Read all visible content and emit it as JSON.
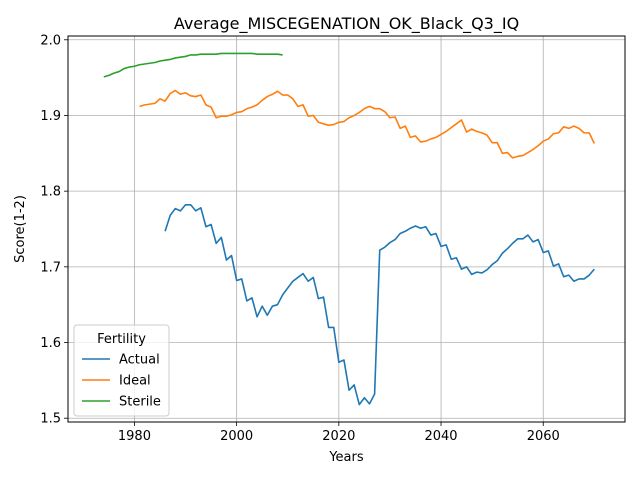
{
  "chart_data": {
    "type": "line",
    "title": "Average_MISCEGENATION_OK_Black_Q3_IQ",
    "xlabel": "Years",
    "ylabel": "Score(1-2)",
    "xlim": [
      1967,
      2076
    ],
    "ylim": [
      1.495,
      2.005
    ],
    "xticks": [
      1980,
      2000,
      2020,
      2040,
      2060
    ],
    "yticks": [
      1.5,
      1.6,
      1.7,
      1.8,
      1.9,
      2.0
    ],
    "ytick_labels": [
      "1.5",
      "1.6",
      "1.7",
      "1.8",
      "1.9",
      "2.0"
    ],
    "grid": true,
    "legend": {
      "title": "Fertility",
      "placement": "lower-left"
    },
    "series": [
      {
        "name": "Actual",
        "color": "#1f77b4",
        "x": [
          1986,
          1987,
          1988,
          1989,
          1990,
          1991,
          1992,
          1993,
          1994,
          1995,
          1996,
          1997,
          1998,
          1999,
          2000,
          2001,
          2002,
          2003,
          2004,
          2005,
          2006,
          2007,
          2008,
          2009,
          2010,
          2011,
          2012,
          2013,
          2014,
          2015,
          2016,
          2017,
          2018,
          2019,
          2020,
          2021,
          2022,
          2023,
          2024,
          2025,
          2026,
          2027,
          2028,
          2029,
          2030,
          2031,
          2032,
          2033,
          2034,
          2035,
          2036,
          2037,
          2038,
          2039,
          2040,
          2041,
          2042,
          2043,
          2044,
          2045,
          2046,
          2047,
          2048,
          2049,
          2050,
          2051,
          2052,
          2053,
          2054,
          2055,
          2056,
          2057,
          2058,
          2059,
          2060,
          2061,
          2062,
          2063,
          2064,
          2065,
          2066,
          2067,
          2068,
          2069,
          2070
        ],
        "values": [
          1.747,
          1.768,
          1.777,
          1.774,
          1.782,
          1.782,
          1.774,
          1.778,
          1.753,
          1.756,
          1.731,
          1.739,
          1.709,
          1.715,
          1.682,
          1.684,
          1.655,
          1.659,
          1.634,
          1.648,
          1.636,
          1.648,
          1.65,
          1.663,
          1.672,
          1.681,
          1.686,
          1.691,
          1.681,
          1.686,
          1.658,
          1.66,
          1.62,
          1.62,
          1.574,
          1.577,
          1.537,
          1.544,
          1.518,
          1.527,
          1.519,
          1.532,
          1.722,
          1.726,
          1.732,
          1.736,
          1.744,
          1.747,
          1.751,
          1.754,
          1.751,
          1.753,
          1.742,
          1.744,
          1.727,
          1.729,
          1.71,
          1.712,
          1.697,
          1.7,
          1.69,
          1.693,
          1.692,
          1.696,
          1.703,
          1.708,
          1.718,
          1.724,
          1.731,
          1.737,
          1.737,
          1.742,
          1.733,
          1.736,
          1.719,
          1.721,
          1.701,
          1.704,
          1.687,
          1.689,
          1.681,
          1.684,
          1.684,
          1.689,
          1.697
        ]
      },
      {
        "name": "Ideal",
        "color": "#ff7f0e",
        "x": [
          1981,
          1982,
          1983,
          1984,
          1985,
          1986,
          1987,
          1988,
          1989,
          1990,
          1991,
          1992,
          1993,
          1994,
          1995,
          1996,
          1997,
          1998,
          1999,
          2000,
          2001,
          2002,
          2003,
          2004,
          2005,
          2006,
          2007,
          2008,
          2009,
          2010,
          2011,
          2012,
          2013,
          2014,
          2015,
          2016,
          2017,
          2018,
          2019,
          2020,
          2021,
          2022,
          2023,
          2024,
          2025,
          2026,
          2027,
          2028,
          2029,
          2030,
          2031,
          2032,
          2033,
          2034,
          2035,
          2036,
          2037,
          2038,
          2039,
          2040,
          2041,
          2042,
          2043,
          2044,
          2045,
          2046,
          2047,
          2048,
          2049,
          2050,
          2051,
          2052,
          2053,
          2054,
          2055,
          2056,
          2057,
          2058,
          2059,
          2060,
          2061,
          2062,
          2063,
          2064,
          2065,
          2066,
          2067,
          2068,
          2069,
          2070
        ],
        "values": [
          1.912,
          1.914,
          1.915,
          1.916,
          1.922,
          1.919,
          1.929,
          1.933,
          1.928,
          1.93,
          1.926,
          1.925,
          1.927,
          1.914,
          1.911,
          1.897,
          1.899,
          1.899,
          1.901,
          1.904,
          1.905,
          1.909,
          1.911,
          1.914,
          1.92,
          1.925,
          1.928,
          1.932,
          1.927,
          1.927,
          1.922,
          1.912,
          1.914,
          1.899,
          1.9,
          1.891,
          1.889,
          1.887,
          1.888,
          1.891,
          1.892,
          1.897,
          1.9,
          1.904,
          1.909,
          1.912,
          1.909,
          1.909,
          1.905,
          1.897,
          1.898,
          1.883,
          1.886,
          1.871,
          1.873,
          1.865,
          1.866,
          1.869,
          1.871,
          1.875,
          1.879,
          1.884,
          1.889,
          1.894,
          1.878,
          1.882,
          1.879,
          1.877,
          1.874,
          1.864,
          1.864,
          1.85,
          1.851,
          1.844,
          1.846,
          1.847,
          1.851,
          1.855,
          1.86,
          1.866,
          1.869,
          1.876,
          1.877,
          1.885,
          1.883,
          1.886,
          1.883,
          1.877,
          1.877,
          1.863
        ]
      },
      {
        "name": "Sterile",
        "color": "#2ca02c",
        "x": [
          1974,
          1975,
          1976,
          1977,
          1978,
          1979,
          1980,
          1981,
          1982,
          1983,
          1984,
          1985,
          1986,
          1987,
          1988,
          1989,
          1990,
          1991,
          1992,
          1993,
          1994,
          1995,
          1996,
          1997,
          1998,
          1999,
          2000,
          2001,
          2002,
          2003,
          2004,
          2005,
          2006,
          2007,
          2008,
          2009
        ],
        "values": [
          1.951,
          1.953,
          1.956,
          1.958,
          1.962,
          1.964,
          1.965,
          1.967,
          1.968,
          1.969,
          1.97,
          1.972,
          1.973,
          1.974,
          1.976,
          1.977,
          1.978,
          1.98,
          1.98,
          1.981,
          1.981,
          1.981,
          1.981,
          1.982,
          1.982,
          1.982,
          1.982,
          1.982,
          1.982,
          1.982,
          1.981,
          1.981,
          1.981,
          1.981,
          1.981,
          1.98
        ]
      }
    ]
  }
}
